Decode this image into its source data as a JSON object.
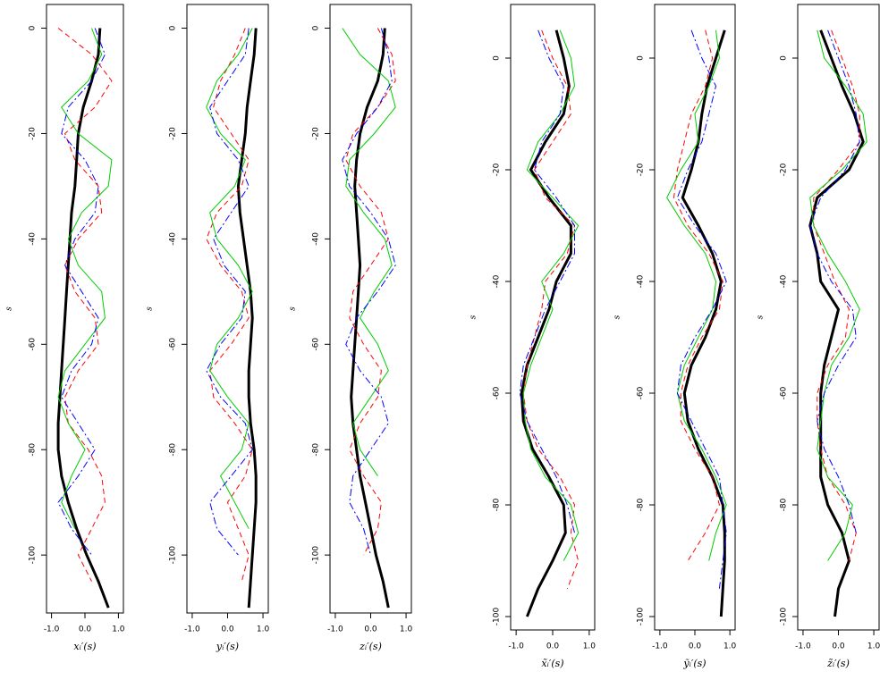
{
  "chart_data": [
    {
      "type": "line",
      "x_label": "xᵢ′(s)",
      "y_label": "s",
      "xlim": [
        -1.15,
        1.15
      ],
      "ylim": [
        -111,
        4.5
      ],
      "xticks": [
        {
          "value": -1,
          "label": "-1.0"
        },
        {
          "value": 0,
          "label": "0.0"
        },
        {
          "value": 1,
          "label": "1.0"
        }
      ],
      "yticks": [
        0,
        -20,
        -40,
        -60,
        -80,
        -100
      ],
      "s": [
        0,
        -5,
        -10,
        -15,
        -20,
        -25,
        -30,
        -35,
        -40,
        -45,
        -50,
        -55,
        -60,
        -65,
        -70,
        -75,
        -80,
        -85,
        -90,
        -95,
        -100,
        -105,
        -110
      ],
      "series": [
        {
          "color": "#000000",
          "linestyle": "solid",
          "linewidth": 3,
          "values": [
            0.45,
            0.4,
            0.2,
            -0.05,
            -0.2,
            -0.25,
            -0.3,
            -0.4,
            -0.45,
            -0.5,
            -0.55,
            -0.6,
            -0.65,
            -0.7,
            -0.75,
            -0.8,
            -0.8,
            -0.7,
            -0.5,
            -0.25,
            0.05,
            0.4,
            0.7
          ]
        },
        {
          "color": "#ff0000",
          "linestyle": "dashed",
          "linewidth": 1,
          "values": [
            -0.8,
            0.2,
            0.8,
            0.3,
            -0.6,
            -0.3,
            0.4,
            0.5,
            -0.2,
            -0.6,
            -0.3,
            0.3,
            0.4,
            -0.2,
            -0.6,
            -0.5,
            0.1,
            0.5,
            0.6,
            0.2,
            -0.2,
            0.2,
            null
          ]
        },
        {
          "color": "#00cd00",
          "linestyle": "solid",
          "linewidth": 1,
          "values": [
            0.2,
            0.5,
            0.1,
            -0.7,
            -0.2,
            0.8,
            0.7,
            -0.1,
            -0.5,
            -0.2,
            0.5,
            0.6,
            0.0,
            -0.6,
            -0.8,
            -0.5,
            0.0,
            -0.4,
            -0.7,
            -0.3,
            null,
            null,
            null
          ]
        },
        {
          "color": "#0000ff",
          "linestyle": "dashdot",
          "linewidth": 1,
          "values": [
            0.3,
            0.6,
            0.2,
            -0.5,
            -0.7,
            0.0,
            0.4,
            0.3,
            -0.3,
            -0.6,
            -0.1,
            0.4,
            0.2,
            -0.4,
            -0.7,
            -0.2,
            0.3,
            -0.2,
            -0.8,
            -0.4,
            0.2,
            null,
            null
          ]
        }
      ]
    },
    {
      "type": "line",
      "x_label": "yᵢ′(s)",
      "y_label": "s",
      "xlim": [
        -1.15,
        1.15
      ],
      "ylim": [
        -111,
        4.5
      ],
      "xticks": [
        {
          "value": -1,
          "label": "-1.0"
        },
        {
          "value": 0,
          "label": "0.0"
        },
        {
          "value": 1,
          "label": "1.0"
        }
      ],
      "yticks": [
        0,
        -20,
        -40,
        -60,
        -80,
        -100
      ],
      "s": [
        0,
        -5,
        -10,
        -15,
        -20,
        -25,
        -30,
        -35,
        -40,
        -45,
        -50,
        -55,
        -60,
        -65,
        -70,
        -75,
        -80,
        -85,
        -90,
        -95,
        -100,
        -105,
        -110
      ],
      "series": [
        {
          "color": "#000000",
          "linestyle": "solid",
          "linewidth": 3,
          "values": [
            0.8,
            0.75,
            0.65,
            0.55,
            0.5,
            0.4,
            0.3,
            0.35,
            0.45,
            0.55,
            0.65,
            0.7,
            0.65,
            0.6,
            0.6,
            0.65,
            0.75,
            0.8,
            0.8,
            0.75,
            0.7,
            0.65,
            0.6
          ]
        },
        {
          "color": "#ff0000",
          "linestyle": "dashed",
          "linewidth": 1,
          "values": [
            0.5,
            0.2,
            -0.2,
            -0.4,
            0.1,
            0.6,
            0.4,
            -0.3,
            -0.6,
            -0.2,
            0.4,
            0.6,
            0.1,
            -0.5,
            -0.4,
            0.2,
            0.7,
            0.5,
            0.0,
            0.3,
            0.6,
            0.4,
            null
          ]
        },
        {
          "color": "#00cd00",
          "linestyle": "solid",
          "linewidth": 1,
          "values": [
            0.7,
            0.3,
            -0.3,
            -0.6,
            -0.2,
            0.5,
            0.2,
            -0.5,
            -0.3,
            0.3,
            0.7,
            0.3,
            -0.3,
            -0.5,
            0.0,
            0.6,
            0.4,
            -0.2,
            0.2,
            0.6,
            null,
            null,
            null
          ]
        },
        {
          "color": "#0000ff",
          "linestyle": "dashdot",
          "linewidth": 1,
          "values": [
            0.6,
            0.5,
            0.0,
            -0.5,
            -0.3,
            0.3,
            0.6,
            0.1,
            -0.4,
            -0.1,
            0.5,
            0.4,
            -0.2,
            -0.6,
            -0.2,
            0.5,
            0.7,
            0.1,
            -0.5,
            -0.3,
            0.3,
            null,
            null
          ]
        }
      ]
    },
    {
      "type": "line",
      "x_label": "zᵢ′(s)",
      "y_label": "s",
      "xlim": [
        -1.15,
        1.15
      ],
      "ylim": [
        -111,
        4.5
      ],
      "xticks": [
        {
          "value": -1,
          "label": "-1.0"
        },
        {
          "value": 0,
          "label": "0.0"
        },
        {
          "value": 1,
          "label": "1.0"
        }
      ],
      "yticks": [
        0,
        -20,
        -40,
        -60,
        -80,
        -100
      ],
      "s": [
        0,
        -5,
        -10,
        -15,
        -20,
        -25,
        -30,
        -35,
        -40,
        -45,
        -50,
        -55,
        -60,
        -65,
        -70,
        -75,
        -80,
        -85,
        -90,
        -95,
        -100,
        -105,
        -110
      ],
      "series": [
        {
          "color": "#000000",
          "linestyle": "solid",
          "linewidth": 3,
          "values": [
            0.4,
            0.35,
            0.2,
            -0.1,
            -0.3,
            -0.4,
            -0.45,
            -0.4,
            -0.35,
            -0.3,
            -0.35,
            -0.4,
            -0.45,
            -0.5,
            -0.55,
            -0.5,
            -0.4,
            -0.3,
            -0.15,
            0.0,
            0.15,
            0.35,
            0.5
          ]
        },
        {
          "color": "#ff0000",
          "linestyle": "dashed",
          "linewidth": 1,
          "values": [
            0.2,
            0.6,
            0.7,
            0.2,
            -0.5,
            -0.7,
            -0.3,
            0.3,
            0.5,
            0.0,
            -0.5,
            -0.6,
            -0.2,
            0.3,
            0.2,
            -0.3,
            -0.6,
            -0.2,
            0.3,
            0.2,
            -0.2,
            null,
            null
          ]
        },
        {
          "color": "#00cd00",
          "linestyle": "solid",
          "linewidth": 1,
          "values": [
            -0.8,
            -0.3,
            0.5,
            0.7,
            0.1,
            -0.6,
            -0.7,
            -0.2,
            0.4,
            0.6,
            0.1,
            -0.3,
            0.2,
            0.5,
            0.0,
            -0.5,
            -0.3,
            0.2,
            null,
            null,
            null,
            null,
            null
          ]
        },
        {
          "color": "#0000ff",
          "linestyle": "dashdot",
          "linewidth": 1,
          "values": [
            0.3,
            0.5,
            0.6,
            0.2,
            -0.4,
            -0.8,
            -0.6,
            0.0,
            0.5,
            0.7,
            0.2,
            -0.4,
            -0.7,
            -0.3,
            0.3,
            0.5,
            0.0,
            -0.5,
            -0.6,
            -0.2,
            0.0,
            null,
            null
          ]
        }
      ]
    },
    {
      "type": "line",
      "x_label": "x̃ᵢ′(s)",
      "y_label": "s",
      "xlim": [
        -1.15,
        1.15
      ],
      "ylim": [
        -102.4,
        9.6
      ],
      "xticks": [
        {
          "value": -1,
          "label": "-1.0"
        },
        {
          "value": 0,
          "label": "0.0"
        },
        {
          "value": 1,
          "label": "1.0"
        }
      ],
      "yticks": [
        0,
        -20,
        -40,
        -60,
        -80,
        -100
      ],
      "s": [
        5,
        0,
        -5,
        -10,
        -15,
        -20,
        -25,
        -30,
        -35,
        -40,
        -45,
        -50,
        -55,
        -60,
        -65,
        -70,
        -75,
        -80,
        -85,
        -90,
        -95,
        -100
      ],
      "series": [
        {
          "color": "#000000",
          "linestyle": "solid",
          "linewidth": 3,
          "values": [
            0.1,
            0.3,
            0.45,
            0.3,
            -0.2,
            -0.6,
            -0.1,
            0.5,
            0.5,
            0.1,
            -0.1,
            -0.4,
            -0.7,
            -0.85,
            -0.8,
            -0.55,
            -0.1,
            0.3,
            0.35,
            0.0,
            -0.4,
            -0.7
          ]
        },
        {
          "color": "#ff0000",
          "linestyle": "dashed",
          "linewidth": 1,
          "values": [
            -0.3,
            0.0,
            0.4,
            0.5,
            0.0,
            -0.5,
            -0.2,
            0.6,
            0.4,
            -0.2,
            -0.3,
            -0.5,
            -0.7,
            -0.8,
            -0.7,
            -0.4,
            0.2,
            0.6,
            0.5,
            0.7,
            0.4,
            null
          ]
        },
        {
          "color": "#00cd00",
          "linestyle": "solid",
          "linewidth": 1,
          "values": [
            0.2,
            0.5,
            0.6,
            0.2,
            -0.4,
            -0.7,
            0.0,
            0.7,
            0.3,
            -0.3,
            0.0,
            -0.3,
            -0.6,
            -0.8,
            -0.75,
            -0.6,
            -0.2,
            0.5,
            0.7,
            0.3,
            null,
            null
          ]
        },
        {
          "color": "#0000ff",
          "linestyle": "dashdot",
          "linewidth": 1,
          "values": [
            -0.4,
            -0.1,
            0.3,
            0.2,
            -0.3,
            -0.5,
            0.1,
            0.6,
            0.6,
            0.2,
            -0.2,
            -0.5,
            -0.8,
            -0.9,
            -0.7,
            -0.3,
            0.1,
            0.4,
            0.6,
            null,
            null,
            null
          ]
        }
      ]
    },
    {
      "type": "line",
      "x_label": "ỹᵢ′(s)",
      "y_label": "s",
      "xlim": [
        -1.15,
        1.15
      ],
      "ylim": [
        -102.4,
        9.6
      ],
      "xticks": [
        {
          "value": -1,
          "label": "-1.0"
        },
        {
          "value": 0,
          "label": "0.0"
        },
        {
          "value": 1,
          "label": "1.0"
        }
      ],
      "yticks": [
        0,
        -20,
        -40,
        -60,
        -80,
        -100
      ],
      "s": [
        5,
        0,
        -5,
        -10,
        -15,
        -20,
        -25,
        -30,
        -35,
        -40,
        -45,
        -50,
        -55,
        -60,
        -65,
        -70,
        -75,
        -80,
        -85,
        -90,
        -95,
        -100
      ],
      "series": [
        {
          "color": "#000000",
          "linestyle": "solid",
          "linewidth": 3,
          "values": [
            0.85,
            0.6,
            0.35,
            0.2,
            0.1,
            -0.1,
            -0.35,
            0.1,
            0.5,
            0.75,
            0.6,
            0.3,
            -0.1,
            -0.3,
            -0.2,
            0.1,
            0.5,
            0.8,
            0.85,
            0.85,
            0.8,
            0.75
          ]
        },
        {
          "color": "#ff0000",
          "linestyle": "dashed",
          "linewidth": 1,
          "values": [
            0.3,
            0.5,
            0.3,
            -0.1,
            -0.3,
            -0.5,
            -0.6,
            -0.2,
            0.4,
            0.8,
            0.7,
            0.2,
            -0.2,
            -0.4,
            -0.4,
            0.0,
            0.5,
            0.7,
            0.3,
            -0.2,
            null,
            null
          ]
        },
        {
          "color": "#00cd00",
          "linestyle": "solid",
          "linewidth": 1,
          "values": [
            0.6,
            0.7,
            0.4,
            0.0,
            0.1,
            -0.4,
            -0.8,
            -0.3,
            0.3,
            0.6,
            0.5,
            0.1,
            -0.3,
            -0.5,
            -0.3,
            0.2,
            0.6,
            0.9,
            0.6,
            0.4,
            null,
            null
          ]
        },
        {
          "color": "#0000ff",
          "linestyle": "dashdot",
          "linewidth": 1,
          "values": [
            -0.1,
            0.2,
            0.6,
            0.4,
            0.2,
            -0.2,
            -0.5,
            0.0,
            0.6,
            0.9,
            0.5,
            0.0,
            -0.4,
            -0.5,
            -0.1,
            0.3,
            0.7,
            0.8,
            0.9,
            0.8,
            0.7,
            null
          ]
        }
      ]
    },
    {
      "type": "line",
      "x_label": "z̃ᵢ′(s)",
      "y_label": "s",
      "xlim": [
        -1.15,
        1.15
      ],
      "ylim": [
        -102.4,
        9.6
      ],
      "xticks": [
        {
          "value": -1,
          "label": "-1.0"
        },
        {
          "value": 0,
          "label": "0.0"
        },
        {
          "value": 1,
          "label": "1.0"
        }
      ],
      "yticks": [
        0,
        -20,
        -40,
        -60,
        -80,
        -100
      ],
      "s": [
        5,
        0,
        -5,
        -10,
        -15,
        -20,
        -25,
        -30,
        -35,
        -40,
        -45,
        -50,
        -55,
        -60,
        -65,
        -70,
        -75,
        -80,
        -85,
        -90,
        -95,
        -100
      ],
      "series": [
        {
          "color": "#000000",
          "linestyle": "solid",
          "linewidth": 3,
          "values": [
            -0.5,
            -0.2,
            0.1,
            0.45,
            0.7,
            0.3,
            -0.6,
            -0.8,
            -0.6,
            -0.5,
            0.0,
            -0.2,
            -0.4,
            -0.5,
            -0.5,
            -0.5,
            -0.5,
            -0.3,
            0.1,
            0.3,
            0.0,
            -0.1
          ]
        },
        {
          "color": "#ff0000",
          "linestyle": "dashed",
          "linewidth": 1,
          "values": [
            -0.2,
            0.1,
            0.4,
            0.6,
            0.6,
            0.0,
            -0.7,
            -0.7,
            -0.4,
            -0.1,
            0.3,
            0.2,
            -0.3,
            -0.6,
            -0.6,
            -0.5,
            -0.3,
            0.2,
            0.5,
            0.3,
            null,
            null
          ]
        },
        {
          "color": "#00cd00",
          "linestyle": "solid",
          "linewidth": 1,
          "values": [
            -0.6,
            -0.4,
            0.2,
            0.7,
            0.8,
            0.1,
            -0.8,
            -0.7,
            -0.3,
            0.2,
            0.6,
            0.3,
            -0.2,
            -0.4,
            -0.5,
            -0.6,
            -0.3,
            0.4,
            0.2,
            -0.3,
            null,
            null
          ]
        },
        {
          "color": "#0000ff",
          "linestyle": "dashdot",
          "linewidth": 1,
          "values": [
            -0.3,
            0.0,
            0.3,
            0.5,
            0.6,
            0.2,
            -0.5,
            -0.8,
            -0.6,
            -0.2,
            0.4,
            0.5,
            0.0,
            -0.4,
            -0.6,
            -0.4,
            0.0,
            0.3,
            0.5,
            null,
            null,
            null
          ]
        }
      ]
    }
  ]
}
